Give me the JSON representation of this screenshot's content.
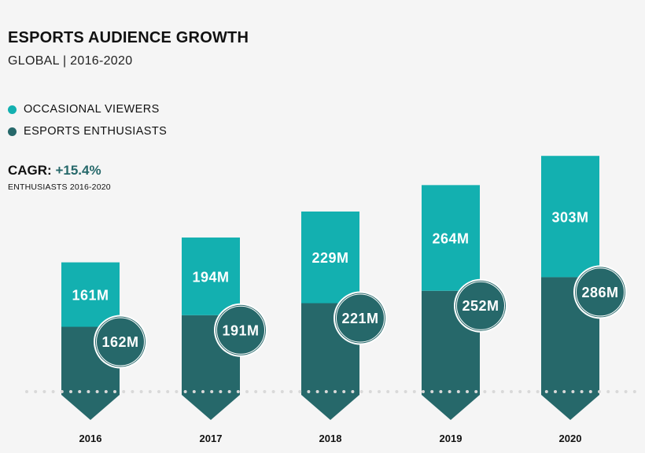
{
  "header": {
    "title": "ESPORTS AUDIENCE GROWTH",
    "subtitle": "GLOBAL | 2016-2020"
  },
  "legend": [
    {
      "label": "OCCASIONAL VIEWERS",
      "color": "#13b0b0"
    },
    {
      "label": "ESPORTS ENTHUSIASTS",
      "color": "#26686a"
    }
  ],
  "cagr": {
    "label": "CAGR:",
    "value": "+15.4%",
    "note": "ENTHUSIASTS 2016-2020"
  },
  "chart_data": {
    "type": "bar",
    "stacked": true,
    "categories": [
      "2016",
      "2017",
      "2018",
      "2019",
      "2020"
    ],
    "series": [
      {
        "name": "ESPORTS ENTHUSIASTS",
        "values": [
          162,
          191,
          221,
          252,
          286
        ],
        "labels": [
          "162M",
          "191M",
          "221M",
          "252M",
          "286M"
        ],
        "color": "#26686a"
      },
      {
        "name": "OCCASIONAL VIEWERS",
        "values": [
          161,
          194,
          229,
          264,
          303
        ],
        "labels": [
          "161M",
          "194M",
          "229M",
          "264M",
          "303M"
        ],
        "color": "#13b0b0"
      }
    ],
    "unit": "M",
    "grid": false,
    "legend_position": "top-left"
  }
}
